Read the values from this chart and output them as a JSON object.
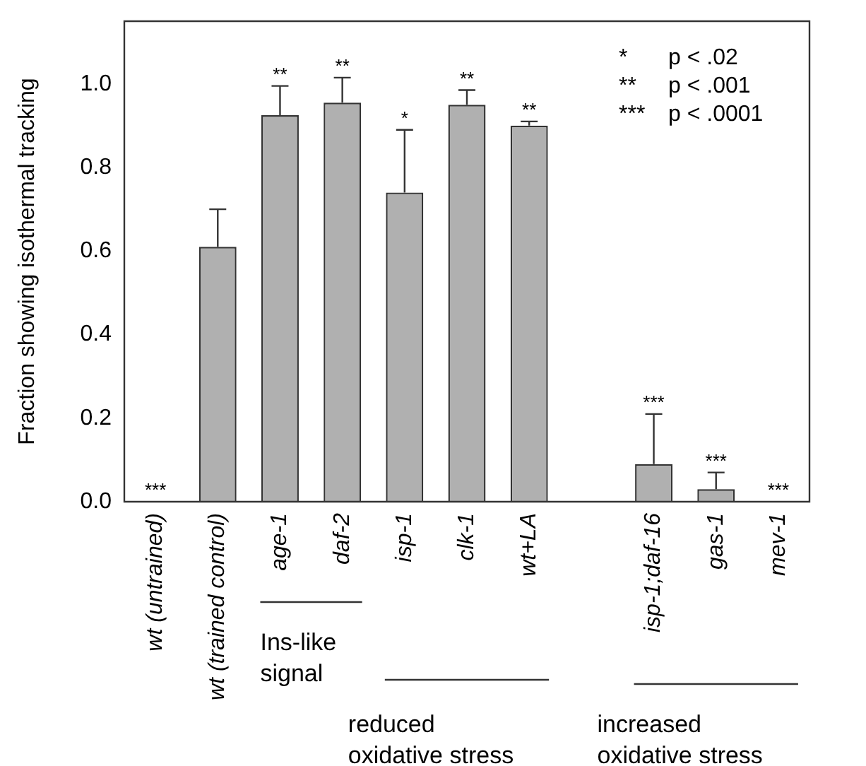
{
  "chart_data": {
    "type": "bar",
    "ylabel": "Fraction showing isothermal tracking",
    "categories": [
      "wt (untrained)",
      "wt (trained control)",
      "age-1",
      "daf-2",
      "isp-1",
      "clk-1",
      "wt+LA",
      null,
      "isp-1;daf-16",
      "gas-1",
      "mev-1"
    ],
    "values": [
      0,
      0.61,
      0.925,
      0.955,
      0.74,
      0.95,
      0.9,
      null,
      0.09,
      0.03,
      0
    ],
    "errors": [
      null,
      [
        0.61,
        0.7
      ],
      [
        0.925,
        0.995
      ],
      [
        0.955,
        1.015
      ],
      [
        0.74,
        0.89
      ],
      [
        0.95,
        0.985
      ],
      [
        0.9,
        0.91
      ],
      null,
      [
        0.09,
        0.21
      ],
      [
        0.03,
        0.07
      ],
      null
    ],
    "color": "#b0b0b0",
    "ylim": [
      0,
      1.15
    ],
    "yticks": [
      {
        "value": 0,
        "label": "0.0"
      },
      {
        "value": 0.2,
        "label": "0.2"
      },
      {
        "value": 0.4,
        "label": "0.4"
      },
      {
        "value": 0.6,
        "label": "0.6"
      },
      {
        "value": 0.8,
        "label": "0.8"
      },
      {
        "value": 1,
        "label": "1.0"
      }
    ],
    "grid": false,
    "legend": false,
    "annotations": [
      {
        "text": "***",
        "x": "wt (untrained)",
        "y": 0
      },
      {
        "text": "**",
        "x": "age-1",
        "y": 0.995
      },
      {
        "text": "**",
        "x": "daf-2",
        "y": 1.015
      },
      {
        "text": "*",
        "x": "isp-1",
        "y": 0.89
      },
      {
        "text": "**",
        "x": "clk-1",
        "y": 0.985
      },
      {
        "text": "**",
        "x": "wt+LA",
        "y": 0.91
      },
      {
        "text": "***",
        "x": "isp-1;daf-16",
        "y": 0.21
      },
      {
        "text": "***",
        "x": "gas-1",
        "y": 0.07
      },
      {
        "text": "***",
        "x": "mev-1",
        "y": 0
      },
      "*  p < .02",
      "**  p < .001",
      "***  p < .0001",
      "Ins-like signal",
      "reduced oxidative stress",
      "increased oxidative stress"
    ]
  }
}
